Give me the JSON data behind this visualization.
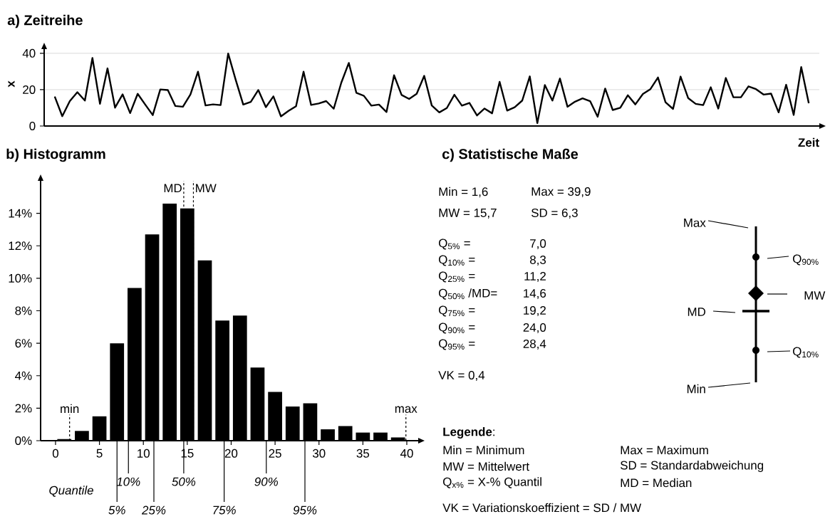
{
  "chart_data": [
    {
      "type": "line",
      "title": "a) Zeitreihe",
      "xlabel": "Zeit",
      "ylabel": "x",
      "color": "#000000",
      "categories": [
        null,
        null,
        null,
        null,
        null,
        null,
        null,
        null,
        null,
        null,
        null,
        null,
        null,
        null,
        null,
        null,
        null,
        null,
        null,
        null,
        null,
        null,
        null,
        null,
        null,
        null,
        null,
        null,
        null,
        null,
        null,
        null,
        null,
        null,
        null,
        null,
        null,
        null,
        null,
        null,
        null,
        null,
        null,
        null,
        null,
        null,
        null,
        null,
        null,
        null,
        null,
        null,
        null,
        null,
        null,
        null,
        null,
        null,
        null,
        null,
        null,
        null,
        null,
        null,
        null,
        null,
        null,
        null,
        null,
        null,
        null,
        null,
        null,
        null,
        null,
        null,
        null,
        null,
        null,
        null,
        null,
        null,
        null,
        null,
        null,
        null,
        null,
        null,
        null,
        null,
        null,
        null,
        null,
        null,
        null,
        null,
        null,
        null,
        null,
        null,
        null
      ],
      "values": [
        16.2,
        5.4,
        13.7,
        18.6,
        14.0,
        37.4,
        12.2,
        31.7,
        10.1,
        17.4,
        7.1,
        17.7,
        11.8,
        6.0,
        20.1,
        19.8,
        11.0,
        10.6,
        17.4,
        29.9,
        11.3,
        11.9,
        11.5,
        39.9,
        25.4,
        11.8,
        13.3,
        19.8,
        10.4,
        16.3,
        5.3,
        8.3,
        10.9,
        29.9,
        11.6,
        12.4,
        13.7,
        9.5,
        23.8,
        34.7,
        18.3,
        16.6,
        11.2,
        11.8,
        7.7,
        27.9,
        17.1,
        14.9,
        17.7,
        27.6,
        11.3,
        7.5,
        9.9,
        17.2,
        11.2,
        12.7,
        5.8,
        9.6,
        7.0,
        24.3,
        8.5,
        10.3,
        14.0,
        27.3,
        1.6,
        22.5,
        14.0,
        26.1,
        10.6,
        13.4,
        15.2,
        13.7,
        5.1,
        20.6,
        8.8,
        10.0,
        16.9,
        11.9,
        17.6,
        20.3,
        26.7,
        13.1,
        9.4,
        27.2,
        15.4,
        12.2,
        11.5,
        21.3,
        9.6,
        26.4,
        15.8,
        15.8,
        21.8,
        20.3,
        17.3,
        17.8,
        7.5,
        22.7,
        6.1,
        32.4,
        12.5
      ],
      "ylim": [
        0,
        42.3
      ],
      "yticks": [
        0,
        20,
        40
      ],
      "grid": "y"
    },
    {
      "type": "histogram",
      "title": "b) Histogramm",
      "color": "#000000",
      "bins": [
        0,
        2,
        4,
        6,
        8,
        10,
        12,
        14,
        16,
        18,
        20,
        22,
        24,
        26,
        28,
        30,
        32,
        34,
        36,
        38,
        40
      ],
      "values": [
        0.1,
        0.6,
        1.5,
        6.0,
        9.4,
        12.7,
        14.6,
        14.3,
        11.1,
        7.4,
        7.7,
        4.5,
        3.0,
        2.1,
        2.3,
        0.7,
        0.9,
        0.5,
        0.5,
        0.2
      ],
      "xlim": [
        -1.7,
        41.3
      ],
      "ylim": [
        0,
        16
      ],
      "xticks": [
        0,
        5,
        10,
        15,
        20,
        25,
        30,
        35,
        40
      ],
      "yticks": [
        {
          "value": 0,
          "label": "0%"
        },
        {
          "value": 2,
          "label": "2%"
        },
        {
          "value": 4,
          "label": "4%"
        },
        {
          "value": 6,
          "label": "6%"
        },
        {
          "value": 8,
          "label": "8%"
        },
        {
          "value": 10,
          "label": "10%"
        },
        {
          "value": 12,
          "label": "12%"
        },
        {
          "value": 14,
          "label": "14%"
        }
      ],
      "ref_lines": [
        {
          "axis": "x",
          "value": 1.6,
          "label": "min",
          "line_style": "dashed"
        },
        {
          "axis": "x",
          "value": 14.6,
          "label": "MD",
          "line_style": "dashed"
        },
        {
          "axis": "x",
          "value": 15.7,
          "label": "MW",
          "line_style": "dashed"
        },
        {
          "axis": "x",
          "value": 39.9,
          "label": "max",
          "line_style": "dashed"
        }
      ],
      "annotations": [
        "Quantile",
        {
          "text": "5%",
          "x": 7.0,
          "y": 0
        },
        {
          "text": "10%",
          "x": 8.3,
          "y": 0
        },
        {
          "text": "25%",
          "x": 11.2,
          "y": 0
        },
        {
          "text": "50%",
          "x": 14.6,
          "y": 0
        },
        {
          "text": "75%",
          "x": 19.2,
          "y": 0
        },
        {
          "text": "90%",
          "x": 24.0,
          "y": 0
        },
        {
          "text": "95%",
          "x": 28.4,
          "y": 0
        }
      ]
    },
    {
      "type": "other",
      "title": "c) Statistische Maße",
      "annotations": [
        "Min = 1,6",
        "Max = 39,9",
        "MW = 15,7",
        "SD = 6,3",
        "Q$_{5%}$ =",
        "7,0",
        "Q$_{10%}$ =",
        "8,3",
        "Q$_{25%}$ =",
        "11,2",
        "Q$_{50%}$ /MD=",
        "14,6",
        "Q$_{75%}$ =",
        "19,2",
        "Q$_{90%}$ =",
        "24,0",
        "Q$_{95%}$ =",
        "28,4",
        "VK = 0,4",
        "Max",
        "Q$_{90%}$",
        "MW",
        "MD",
        "Q$_{10%}$",
        "Min",
        "**Legende**:",
        "Min = Minimum",
        "Max = Maximum",
        "MW = Mittelwert",
        "SD = Standardabweichung",
        "Q$_{x%}$ = X-% Quantil",
        "MD = Median",
        "VK = Variationskoeffizient = SD / MW"
      ]
    }
  ]
}
